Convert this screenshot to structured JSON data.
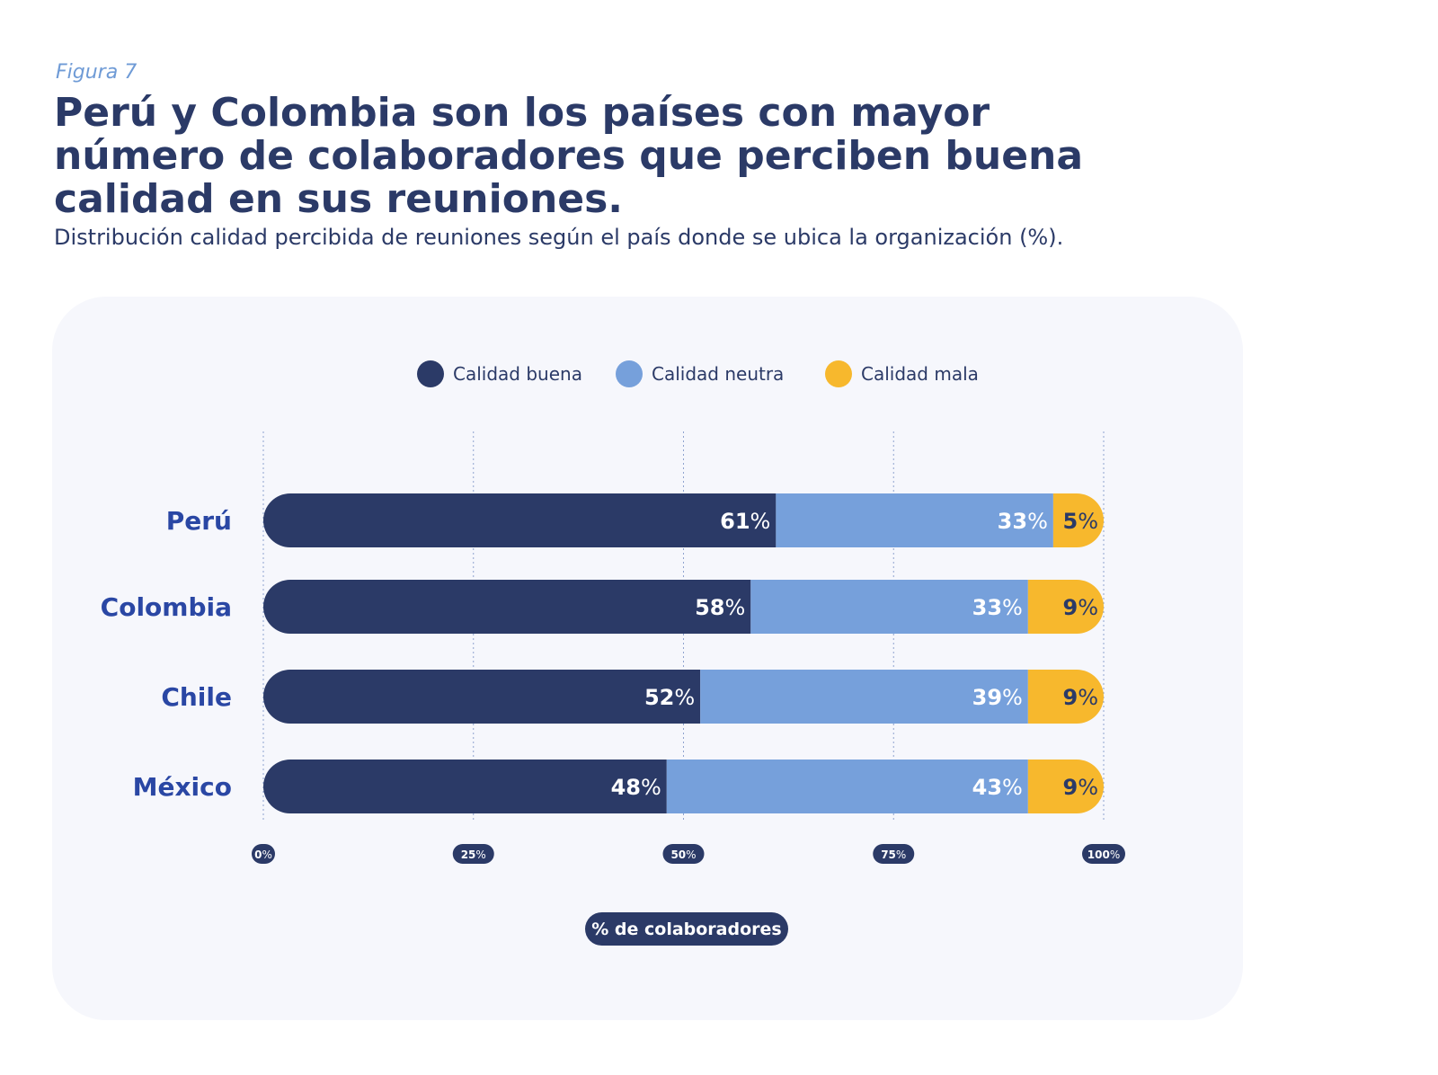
{
  "figure_label": "Figura 7",
  "chart_data": {
    "type": "bar",
    "orientation": "horizontal",
    "stacked": true,
    "title": "Perú y Colombia son los países con mayor número de colaboradores que perciben buena calidad en sus reuniones.",
    "subtitle": "Distribución calidad percibida de reuniones según el país donde se ubica la organización (%).",
    "categories": [
      "Perú",
      "Colombia",
      "Chile",
      "México"
    ],
    "series": [
      {
        "name": "Calidad buena",
        "color": "#2b3a67",
        "label_color": "#ffffff",
        "values": [
          61,
          58,
          52,
          48
        ]
      },
      {
        "name": "Calidad neutra",
        "color": "#76a0db",
        "label_color": "#ffffff",
        "values": [
          33,
          33,
          39,
          43
        ]
      },
      {
        "name": "Calidad mala",
        "color": "#f7b82d",
        "label_color": "#2b3a67",
        "values": [
          5,
          9,
          9,
          9
        ]
      }
    ],
    "value_suffix": "%",
    "xlim": [
      0,
      100
    ],
    "xticks": [
      0,
      25,
      50,
      75,
      100
    ],
    "tick_suffix": "%",
    "xlabel_prefix": "%",
    "xlabel": "de colaboradores",
    "legend_position": "top",
    "grid": "vertical-dashed"
  }
}
